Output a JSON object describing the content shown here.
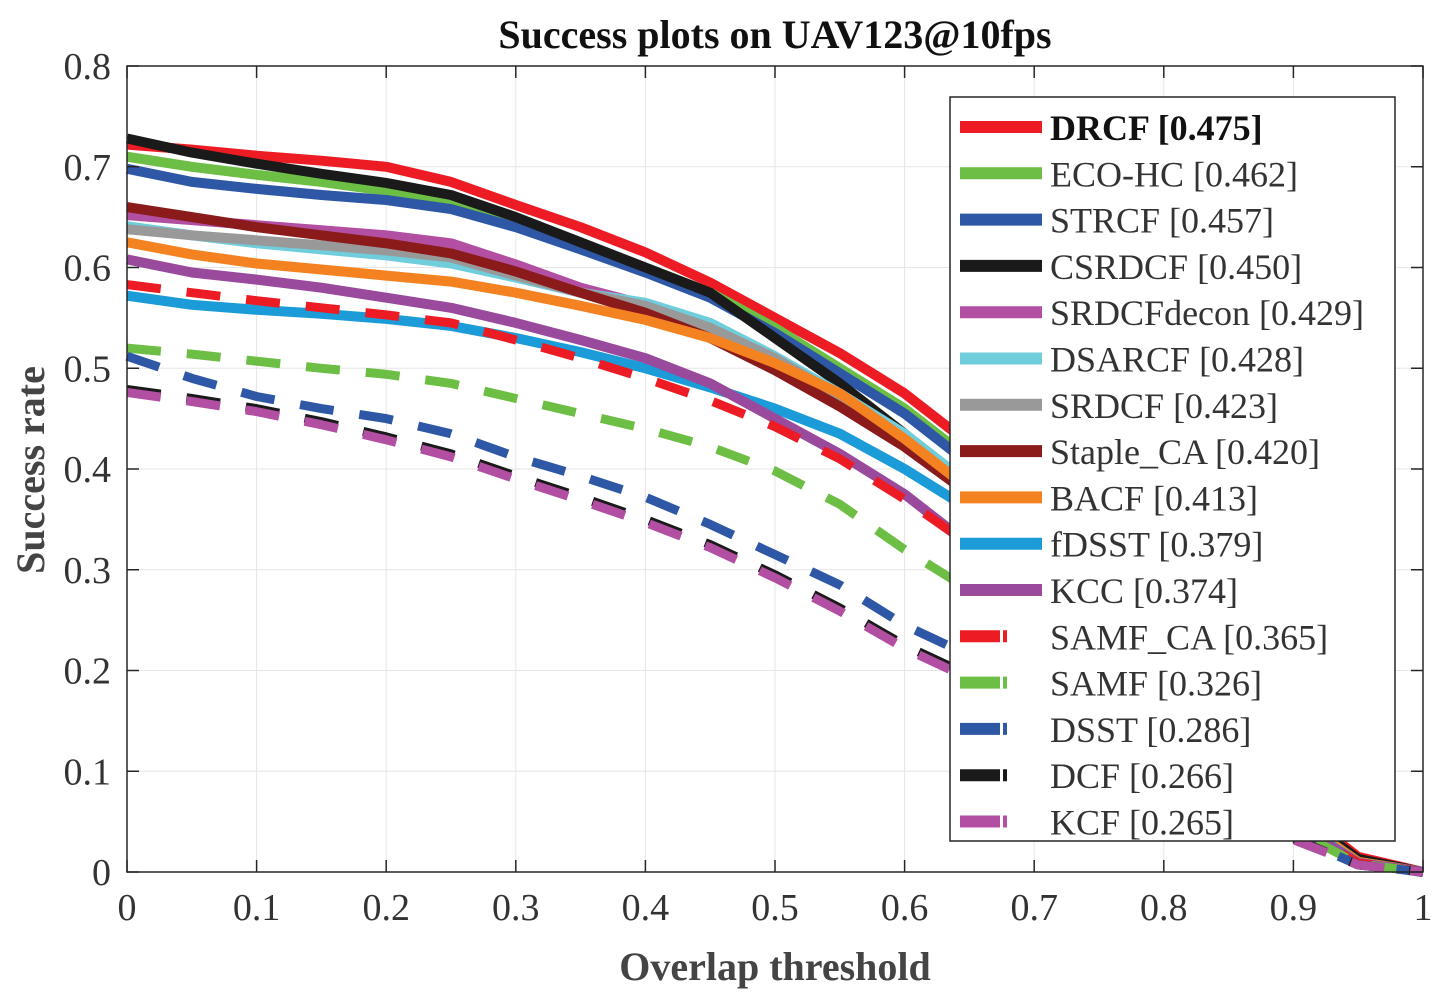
{
  "chart_data": {
    "type": "line",
    "title": "Success plots on UAV123@10fps",
    "xlabel": "Overlap threshold",
    "ylabel": "Success rate",
    "xlim": [
      0,
      1
    ],
    "ylim": [
      0,
      0.8
    ],
    "xticks": [
      "0",
      "0.1",
      "0.2",
      "0.3",
      "0.4",
      "0.5",
      "0.6",
      "0.7",
      "0.8",
      "0.9",
      "1"
    ],
    "yticks": [
      "0",
      "0.1",
      "0.2",
      "0.3",
      "0.4",
      "0.5",
      "0.6",
      "0.7",
      "0.8"
    ],
    "grid": true,
    "legend_position": "top-right",
    "x": [
      0,
      0.05,
      0.1,
      0.15,
      0.2,
      0.25,
      0.3,
      0.35,
      0.4,
      0.45,
      0.5,
      0.55,
      0.6,
      0.65,
      0.7,
      0.75,
      0.8,
      0.85,
      0.9,
      0.95,
      1
    ],
    "series": [
      {
        "name": "DRCF [0.475]",
        "color": "#ED1C24",
        "dash": "solid",
        "bold": true,
        "values": [
          0.722,
          0.717,
          0.711,
          0.706,
          0.7,
          0.685,
          0.662,
          0.64,
          0.615,
          0.585,
          0.55,
          0.515,
          0.475,
          0.425,
          0.37,
          0.3,
          0.22,
          0.14,
          0.065,
          0.015,
          0.0
        ]
      },
      {
        "name": "ECO-HC [0.462]",
        "color": "#6DBE45",
        "dash": "solid",
        "values": [
          0.71,
          0.7,
          0.692,
          0.685,
          0.676,
          0.665,
          0.645,
          0.622,
          0.6,
          0.575,
          0.54,
          0.5,
          0.46,
          0.41,
          0.355,
          0.29,
          0.215,
          0.135,
          0.06,
          0.012,
          0.0
        ]
      },
      {
        "name": "STRCF [0.457]",
        "color": "#2E58A6",
        "dash": "solid",
        "values": [
          0.698,
          0.685,
          0.678,
          0.672,
          0.667,
          0.658,
          0.64,
          0.618,
          0.595,
          0.57,
          0.535,
          0.495,
          0.455,
          0.405,
          0.35,
          0.285,
          0.21,
          0.132,
          0.058,
          0.011,
          0.0
        ]
      },
      {
        "name": "CSRDCF [0.450]",
        "color": "#1A1A1A",
        "dash": "solid",
        "values": [
          0.728,
          0.714,
          0.703,
          0.693,
          0.684,
          0.672,
          0.65,
          0.625,
          0.6,
          0.575,
          0.53,
          0.485,
          0.435,
          0.38,
          0.325,
          0.265,
          0.195,
          0.125,
          0.06,
          0.013,
          0.0
        ]
      },
      {
        "name": "SRDCFdecon [0.429]",
        "color": "#B24FA2",
        "dash": "solid",
        "values": [
          0.652,
          0.647,
          0.642,
          0.637,
          0.632,
          0.624,
          0.603,
          0.58,
          0.563,
          0.54,
          0.505,
          0.47,
          0.43,
          0.38,
          0.325,
          0.265,
          0.195,
          0.125,
          0.055,
          0.01,
          0.0
        ]
      },
      {
        "name": "DSARCF [0.428]",
        "color": "#6FCDDC",
        "dash": "solid",
        "values": [
          0.641,
          0.632,
          0.624,
          0.618,
          0.612,
          0.604,
          0.59,
          0.575,
          0.565,
          0.545,
          0.512,
          0.475,
          0.435,
          0.385,
          0.33,
          0.268,
          0.198,
          0.125,
          0.055,
          0.01,
          0.0
        ]
      },
      {
        "name": "SRDCF [0.423]",
        "color": "#999999",
        "dash": "solid",
        "values": [
          0.638,
          0.632,
          0.627,
          0.622,
          0.617,
          0.61,
          0.592,
          0.575,
          0.562,
          0.54,
          0.51,
          0.472,
          0.43,
          0.38,
          0.325,
          0.265,
          0.195,
          0.125,
          0.055,
          0.01,
          0.0
        ]
      },
      {
        "name": "Staple_CA [0.420]",
        "color": "#8B1A1A",
        "dash": "solid",
        "values": [
          0.66,
          0.65,
          0.64,
          0.632,
          0.624,
          0.614,
          0.596,
          0.575,
          0.555,
          0.53,
          0.498,
          0.462,
          0.422,
          0.375,
          0.32,
          0.26,
          0.19,
          0.12,
          0.052,
          0.01,
          0.0
        ]
      },
      {
        "name": "BACF [0.413]",
        "color": "#F58220",
        "dash": "solid",
        "values": [
          0.625,
          0.613,
          0.604,
          0.598,
          0.592,
          0.586,
          0.575,
          0.562,
          0.548,
          0.53,
          0.505,
          0.475,
          0.43,
          0.38,
          0.325,
          0.265,
          0.195,
          0.125,
          0.055,
          0.01,
          0.0
        ]
      },
      {
        "name": "fDSST [0.379]",
        "color": "#1B9CD8",
        "dash": "solid",
        "values": [
          0.572,
          0.563,
          0.558,
          0.554,
          0.549,
          0.542,
          0.53,
          0.516,
          0.5,
          0.481,
          0.46,
          0.435,
          0.4,
          0.36,
          0.31,
          0.252,
          0.185,
          0.115,
          0.05,
          0.009,
          0.0
        ]
      },
      {
        "name": "KCC [0.374]",
        "color": "#9A4A9C",
        "dash": "solid",
        "values": [
          0.608,
          0.595,
          0.588,
          0.58,
          0.57,
          0.56,
          0.545,
          0.528,
          0.51,
          0.485,
          0.45,
          0.415,
          0.375,
          0.325,
          0.278,
          0.228,
          0.172,
          0.11,
          0.048,
          0.009,
          0.0
        ]
      },
      {
        "name": "SAMF_CA [0.365]",
        "color": "#ED1C24",
        "dash": "dashed",
        "values": [
          0.583,
          0.575,
          0.567,
          0.56,
          0.553,
          0.545,
          0.528,
          0.51,
          0.49,
          0.468,
          0.442,
          0.41,
          0.37,
          0.325,
          0.275,
          0.222,
          0.165,
          0.105,
          0.045,
          0.009,
          0.0
        ]
      },
      {
        "name": "SAMF [0.326]",
        "color": "#6DBE45",
        "dash": "dashed",
        "values": [
          0.52,
          0.514,
          0.507,
          0.5,
          0.494,
          0.485,
          0.47,
          0.455,
          0.44,
          0.422,
          0.398,
          0.365,
          0.32,
          0.28,
          0.24,
          0.195,
          0.145,
          0.095,
          0.042,
          0.008,
          0.0
        ]
      },
      {
        "name": "DSST [0.286]",
        "color": "#2E58A6",
        "dash": "dashed",
        "values": [
          0.512,
          0.49,
          0.472,
          0.46,
          0.45,
          0.435,
          0.412,
          0.393,
          0.372,
          0.345,
          0.315,
          0.285,
          0.245,
          0.215,
          0.182,
          0.148,
          0.112,
          0.075,
          0.035,
          0.007,
          0.0
        ]
      },
      {
        "name": "DCF [0.266]",
        "color": "#1A1A1A",
        "dash": "dashed",
        "values": [
          0.479,
          0.47,
          0.46,
          0.447,
          0.432,
          0.415,
          0.393,
          0.372,
          0.35,
          0.325,
          0.295,
          0.262,
          0.225,
          0.195,
          0.168,
          0.138,
          0.105,
          0.07,
          0.033,
          0.007,
          0.0
        ]
      },
      {
        "name": "KCF [0.265]",
        "color": "#B24FA2",
        "dash": "dashed",
        "values": [
          0.476,
          0.467,
          0.457,
          0.444,
          0.429,
          0.412,
          0.39,
          0.369,
          0.347,
          0.322,
          0.292,
          0.259,
          0.222,
          0.192,
          0.165,
          0.136,
          0.103,
          0.068,
          0.032,
          0.007,
          0.0
        ]
      }
    ]
  }
}
